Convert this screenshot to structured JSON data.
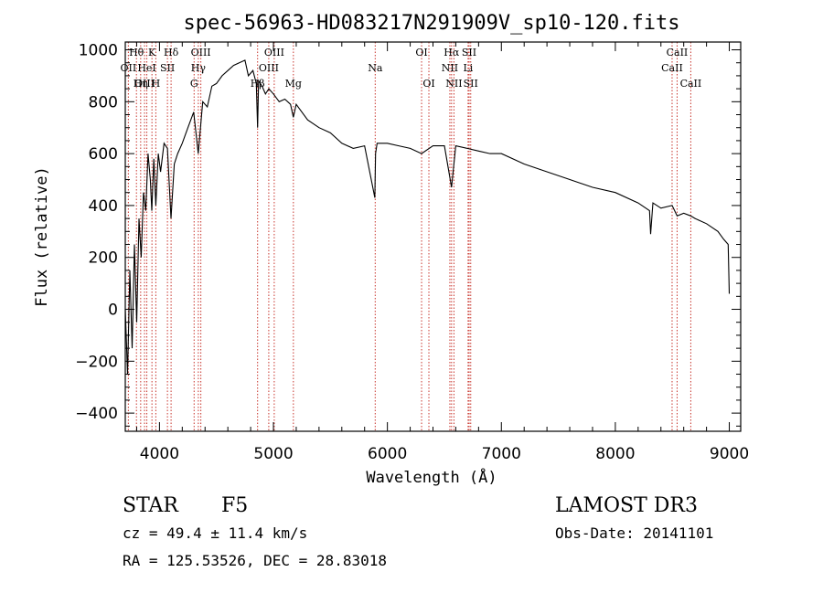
{
  "chart_data": {
    "type": "line",
    "title": "spec-56963-HD083217N291909V_sp10-120.fits",
    "xlabel": "Wavelength (Å)",
    "ylabel": "Flux (relative)",
    "xlim": [
      3700,
      9100
    ],
    "ylim": [
      -470,
      1030
    ],
    "xticks": [
      4000,
      5000,
      6000,
      7000,
      8000,
      9000
    ],
    "yticks": [
      -400,
      -200,
      0,
      200,
      400,
      600,
      800,
      1000
    ],
    "xtick_labels": [
      "4000",
      "5000",
      "6000",
      "7000",
      "8000",
      "9000"
    ],
    "ytick_labels": [
      "−400",
      "−200",
      "0",
      "200",
      "400",
      "600",
      "800",
      "1000"
    ],
    "series": [
      {
        "name": "spectrum",
        "x": [
          3700,
          3720,
          3740,
          3760,
          3780,
          3800,
          3820,
          3840,
          3860,
          3880,
          3900,
          3920,
          3933,
          3950,
          3968,
          3990,
          4010,
          4040,
          4070,
          4101,
          4130,
          4160,
          4200,
          4250,
          4300,
          4340,
          4380,
          4420,
          4460,
          4500,
          4550,
          4600,
          4650,
          4700,
          4750,
          4780,
          4820,
          4850,
          4861,
          4870,
          4900,
          4930,
          4960,
          5000,
          5050,
          5100,
          5150,
          5175,
          5200,
          5300,
          5400,
          5500,
          5600,
          5700,
          5800,
          5890,
          5896,
          5910,
          6000,
          6100,
          6200,
          6300,
          6400,
          6500,
          6563,
          6600,
          6700,
          6800,
          6900,
          7000,
          7200,
          7400,
          7600,
          7800,
          8000,
          8200,
          8300,
          8310,
          8330,
          8400,
          8498,
          8542,
          8600,
          8662,
          8700,
          8800,
          8900,
          8950,
          8990,
          9000
        ],
        "values": [
          0,
          -250,
          150,
          -150,
          250,
          -50,
          350,
          200,
          450,
          380,
          600,
          500,
          380,
          580,
          400,
          600,
          530,
          640,
          620,
          350,
          560,
          600,
          640,
          700,
          760,
          600,
          800,
          780,
          860,
          870,
          900,
          920,
          940,
          950,
          960,
          900,
          920,
          870,
          700,
          880,
          860,
          830,
          850,
          830,
          800,
          810,
          790,
          740,
          790,
          730,
          700,
          680,
          640,
          620,
          630,
          430,
          600,
          640,
          640,
          630,
          620,
          600,
          630,
          630,
          470,
          630,
          620,
          610,
          600,
          600,
          560,
          530,
          500,
          470,
          450,
          410,
          380,
          290,
          410,
          390,
          400,
          360,
          370,
          360,
          350,
          330,
          300,
          270,
          250,
          60
        ]
      }
    ],
    "spectral_lines": [
      {
        "name": "Hθ",
        "wave": 3798,
        "row": 0
      },
      {
        "name": "K",
        "wave": 3934,
        "row": 0
      },
      {
        "name": "Hδ",
        "wave": 4102,
        "row": 0
      },
      {
        "name": "OIII",
        "wave": 4363,
        "row": 0
      },
      {
        "name": "OIII",
        "wave": 5007,
        "row": 0
      },
      {
        "name": "OI",
        "wave": 6300,
        "row": 0
      },
      {
        "name": "Hα",
        "wave": 6563,
        "row": 0
      },
      {
        "name": "SII",
        "wave": 6717,
        "row": 0
      },
      {
        "name": "CaII",
        "wave": 8542,
        "row": 0
      },
      {
        "name": "OII",
        "wave": 3727,
        "row": 1
      },
      {
        "name": "HeI",
        "wave": 3889,
        "row": 1
      },
      {
        "name": "SII",
        "wave": 4070,
        "row": 1
      },
      {
        "name": "Hγ",
        "wave": 4341,
        "row": 1
      },
      {
        "name": "OIII",
        "wave": 4959,
        "row": 1
      },
      {
        "name": "Na",
        "wave": 5893,
        "row": 1
      },
      {
        "name": "NII",
        "wave": 6548,
        "row": 1
      },
      {
        "name": "Li",
        "wave": 6708,
        "row": 1
      },
      {
        "name": "CaII",
        "wave": 8498,
        "row": 1
      },
      {
        "name": "OIII",
        "wave": 3869,
        "row": 2
      },
      {
        "name": "Hη",
        "wave": 3835,
        "row": 2
      },
      {
        "name": "H",
        "wave": 3968,
        "row": 2
      },
      {
        "name": "G",
        "wave": 4304,
        "row": 2
      },
      {
        "name": "OI",
        "wave": 6364,
        "row": 2
      },
      {
        "name": "NII",
        "wave": 6584,
        "row": 2
      },
      {
        "name": "SII",
        "wave": 6731,
        "row": 2
      },
      {
        "name": "CaII",
        "wave": 8662,
        "row": 2
      },
      {
        "name": "Hβ",
        "wave": 4861,
        "row": 3
      },
      {
        "name": "Mg",
        "wave": 5175,
        "row": 3
      }
    ],
    "annotations": {
      "object_class": "STAR",
      "subclass": "F5",
      "survey": "LAMOST DR3",
      "cz": "cz = 49.4 ± 11.4 km/s",
      "obs_date": "Obs-Date: 20141101",
      "coords": "RA = 125.53526, DEC =  28.83018"
    }
  }
}
